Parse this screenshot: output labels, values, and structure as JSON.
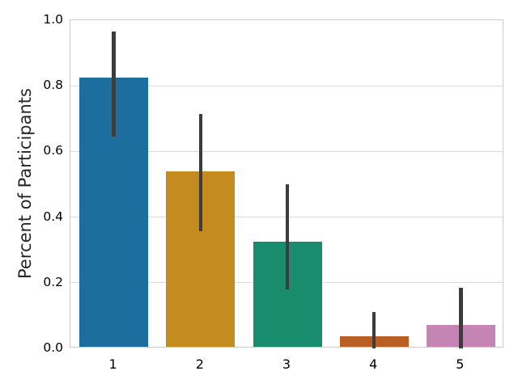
{
  "chart_data": {
    "type": "bar",
    "title": "",
    "xlabel": "",
    "ylabel": "Percent of Participants",
    "categories": [
      "1",
      "2",
      "3",
      "4",
      "5"
    ],
    "values": [
      0.82,
      0.535,
      0.32,
      0.033,
      0.067
    ],
    "error_low": [
      0.645,
      0.357,
      0.18,
      0.0,
      0.0
    ],
    "error_high": [
      0.965,
      0.715,
      0.5,
      0.11,
      0.185
    ],
    "ylim": [
      0.0,
      1.0
    ],
    "yticks": [
      0.0,
      0.2,
      0.4,
      0.6,
      0.8,
      1.0
    ],
    "ytick_labels": [
      "0.0",
      "0.2",
      "0.4",
      "0.6",
      "0.8",
      "1.0"
    ],
    "grid": "horizontal",
    "legend": "none",
    "bar_colors": [
      "#1b6e9e",
      "#c48c20",
      "#198c6e",
      "#b95f23",
      "#c585b4"
    ],
    "errorbar_color": "#3c3c3c",
    "gridline_color": "#dcdcdc",
    "spine_color": "#cbcbcb",
    "tick_text_color": "#262626"
  }
}
